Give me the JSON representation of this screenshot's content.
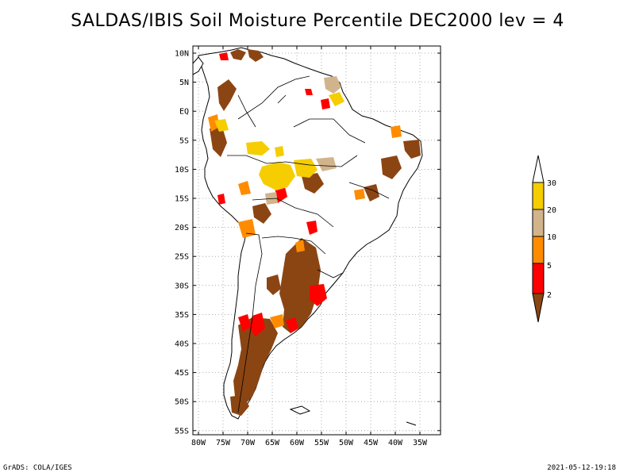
{
  "title": "SALDAS/IBIS Soil Moisture Percentile DEC2000 lev = 4",
  "lat_ticks": [
    "10N",
    "5N",
    "EQ",
    "5S",
    "10S",
    "15S",
    "20S",
    "25S",
    "30S",
    "35S",
    "40S",
    "45S",
    "50S",
    "55S"
  ],
  "lon_ticks": [
    "80W",
    "75W",
    "70W",
    "65W",
    "60W",
    "55W",
    "50W",
    "45W",
    "40W",
    "35W"
  ],
  "legend": {
    "labels": [
      "30",
      "20",
      "10",
      "5",
      "2"
    ],
    "colors": {
      "above30": "#ffffff",
      "c20_30": "#f5cd00",
      "c10_20": "#d2b48c",
      "c5_10": "#ff8c00",
      "c2_5": "#ff0000",
      "below2": "#8b4513"
    }
  },
  "credit": "GrADS: COLA/IGES",
  "timestamp": "2021-05-12-19:18"
}
